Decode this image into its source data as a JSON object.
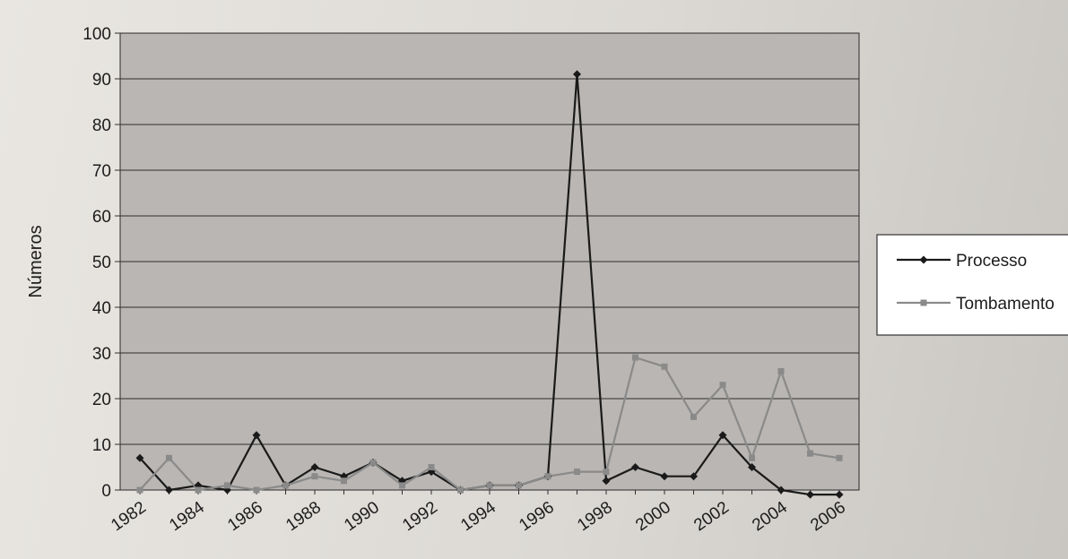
{
  "chart_data": {
    "type": "line",
    "title": "",
    "xlabel": "",
    "ylabel": "Números",
    "ylim": [
      0,
      100
    ],
    "yticks": [
      0,
      10,
      20,
      30,
      40,
      50,
      60,
      70,
      80,
      90,
      100
    ],
    "xlim": [
      1982,
      2006
    ],
    "xticks": [
      1982,
      1984,
      1986,
      1988,
      1990,
      1992,
      1994,
      1996,
      1998,
      2000,
      2002,
      2004,
      2006
    ],
    "grid": true,
    "legend_position": "right",
    "x": [
      1982,
      1983,
      1984,
      1985,
      1986,
      1987,
      1988,
      1989,
      1990,
      1991,
      1992,
      1993,
      1994,
      1995,
      1996,
      1997,
      1998,
      1999,
      2000,
      2001,
      2002,
      2003,
      2004,
      2005,
      2006
    ],
    "series": [
      {
        "name": "Processo",
        "color": "#1a1a1a",
        "marker": "diamond",
        "values": [
          7,
          0,
          1,
          0,
          12,
          1,
          5,
          3,
          6,
          2,
          4,
          0,
          1,
          1,
          3,
          91,
          2,
          5,
          3,
          3,
          12,
          5,
          0,
          -1,
          -1
        ]
      },
      {
        "name": "Tombamento",
        "color": "#8a8a8a",
        "marker": "square",
        "values": [
          0,
          7,
          0,
          1,
          0,
          1,
          3,
          2,
          6,
          1,
          5,
          0,
          1,
          1,
          3,
          4,
          4,
          29,
          27,
          16,
          23,
          7,
          26,
          8,
          7
        ]
      }
    ]
  }
}
